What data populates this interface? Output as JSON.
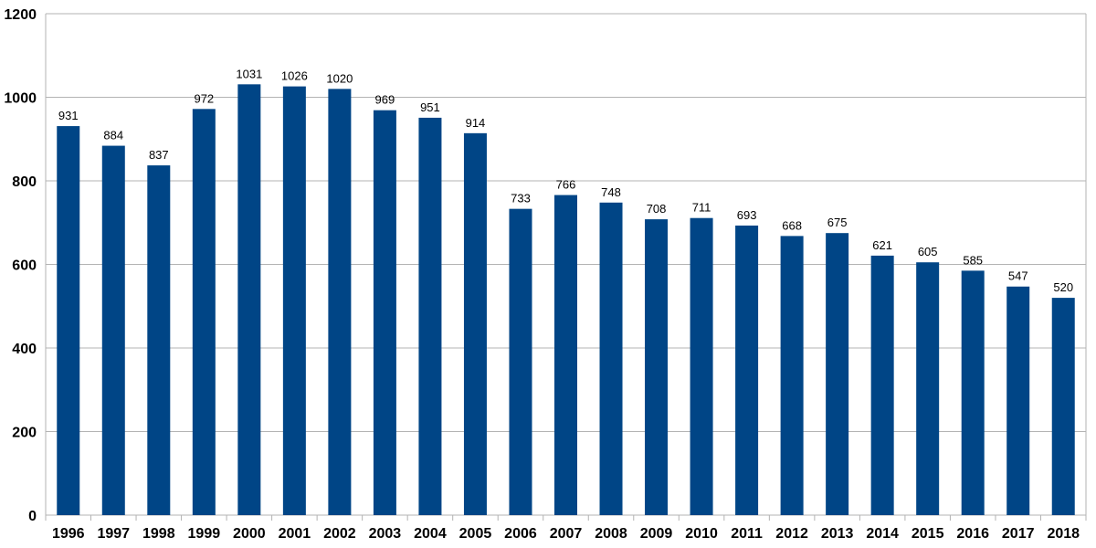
{
  "chart_data": {
    "type": "bar",
    "categories": [
      "1996",
      "1997",
      "1998",
      "1999",
      "2000",
      "2001",
      "2002",
      "2003",
      "2004",
      "2005",
      "2006",
      "2007",
      "2008",
      "2009",
      "2010",
      "2011",
      "2012",
      "2013",
      "2014",
      "2015",
      "2016",
      "2017",
      "2018"
    ],
    "values": [
      931,
      884,
      837,
      972,
      1031,
      1026,
      1020,
      969,
      951,
      914,
      733,
      766,
      748,
      708,
      711,
      693,
      668,
      675,
      621,
      605,
      585,
      547,
      520
    ],
    "title": "",
    "xlabel": "",
    "ylabel": "",
    "ylim": [
      0,
      1200
    ],
    "yticks": [
      0,
      200,
      400,
      600,
      800,
      1000,
      1200
    ],
    "grid": true,
    "legend": "none",
    "data_labels": true
  },
  "colors": {
    "bar": "#004586",
    "grid": "#b3b3b3",
    "text": "#000000"
  }
}
